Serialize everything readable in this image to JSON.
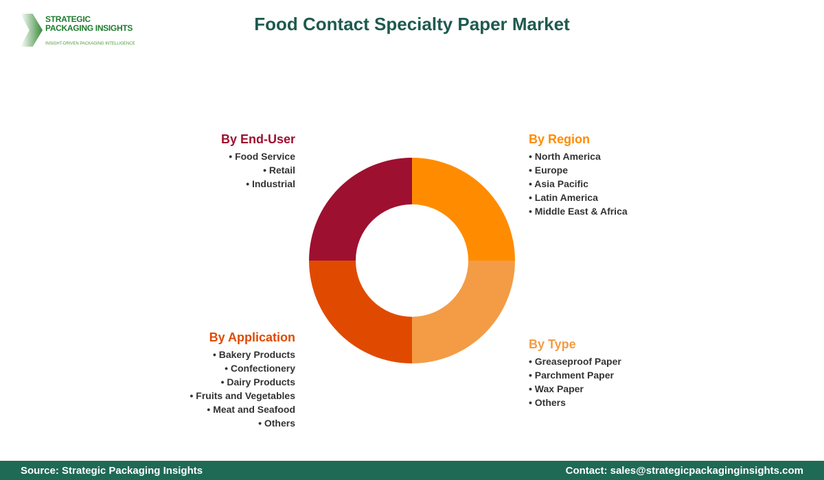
{
  "logo": {
    "line1": "STRATEGIC",
    "line2": "PACKAGING INSIGHTS",
    "tagline": "INSIGHT-DRIVEN PACKAGING INTELLIGENCE"
  },
  "title": "Food Contact Specialty Paper Market",
  "segments": [
    {
      "title": "By Region",
      "color": "#FF8C00",
      "items": [
        "North America",
        "Europe",
        "Asia Pacific",
        "Latin America",
        "Middle East & Africa"
      ]
    },
    {
      "title": "By Type",
      "color": "#F39C45",
      "items": [
        "Greaseproof Paper",
        "Parchment Paper",
        "Wax Paper",
        "Others"
      ]
    },
    {
      "title": "By Application",
      "color": "#E04A00",
      "items": [
        "Bakery Products",
        "Confectionery",
        "Dairy Products",
        "Fruits and Vegetables",
        "Meat and Seafood",
        "Others"
      ]
    },
    {
      "title": "By End-User",
      "color": "#9E1030",
      "items": [
        "Food Service",
        "Retail",
        "Industrial"
      ]
    }
  ],
  "footer": {
    "source": "Source: Strategic Packaging Insights",
    "contact": "Contact: sales@strategicpackaginginsights.com"
  }
}
